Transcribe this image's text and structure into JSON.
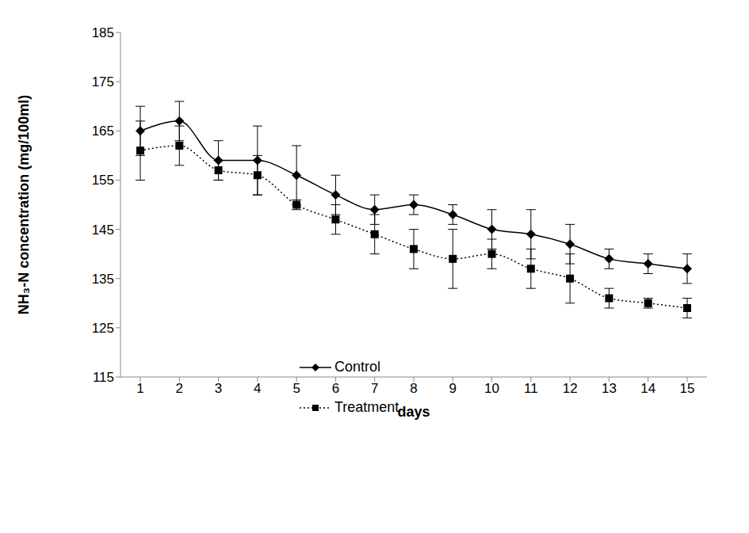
{
  "chart_data": {
    "type": "line",
    "x_label": "days",
    "y_label": "NH₃-N concentration (mg/100ml)",
    "categories": [
      "1",
      "2",
      "3",
      "4",
      "5",
      "6",
      "7",
      "8",
      "9",
      "10",
      "11",
      "12",
      "13",
      "14",
      "15"
    ],
    "series": [
      {
        "name": "Control",
        "color": "#000000",
        "marker": "diamond",
        "line_style": "solid",
        "values": [
          165,
          167,
          159,
          159,
          156,
          152,
          149,
          150,
          148,
          145,
          144,
          142,
          139,
          138,
          137
        ],
        "error": [
          5,
          4,
          4,
          7,
          6,
          4,
          3,
          2,
          2,
          4,
          5,
          4,
          2,
          2,
          3
        ]
      },
      {
        "name": "Treatment",
        "color": "#000000",
        "marker": "square",
        "line_style": "dotted",
        "values": [
          161,
          162,
          157,
          156,
          150,
          147,
          144,
          141,
          139,
          140,
          137,
          135,
          131,
          130,
          129
        ],
        "error": [
          6,
          4,
          2,
          4,
          1,
          3,
          4,
          4,
          6,
          3,
          4,
          5,
          2,
          1,
          2
        ]
      }
    ],
    "ylim": [
      115,
      185
    ],
    "yticks": [
      115,
      125,
      135,
      145,
      155,
      165,
      175,
      185
    ],
    "grid": false,
    "legend": "center"
  }
}
